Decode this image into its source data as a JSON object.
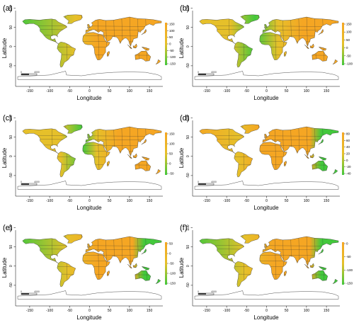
{
  "figure": {
    "panels": [
      {
        "label": "(a)",
        "scheme": "a",
        "colorbar": [
          "150",
          "100",
          "50",
          "0",
          "-50",
          "-100",
          "-150"
        ]
      },
      {
        "label": "(b)",
        "scheme": "b",
        "colorbar": [
          "150",
          "100",
          "50",
          "0",
          "-50",
          "-100"
        ]
      },
      {
        "label": "(c)",
        "scheme": "c",
        "colorbar": [
          "150",
          "100",
          "50",
          "0",
          "-50"
        ]
      },
      {
        "label": "(d)",
        "scheme": "d",
        "colorbar": [
          "80",
          "60",
          "40",
          "20",
          "0",
          "-20",
          "-40"
        ]
      },
      {
        "label": "(e)",
        "scheme": "e",
        "colorbar": [
          "50",
          "0",
          "-50",
          "-100",
          "-150"
        ]
      },
      {
        "label": "(f)",
        "scheme": "f",
        "colorbar": [
          "0",
          "-50",
          "-100",
          "-150"
        ]
      }
    ],
    "xlabel": "Longitude",
    "ylabel": "Latitude",
    "xticks": [
      "-150",
      "-100",
      "-50",
      "0",
      "50",
      "100",
      "150"
    ],
    "yticks": [
      "100",
      "50",
      "0",
      "-50"
    ],
    "scalebar": {
      "left": "0",
      "right": "4000"
    },
    "colors": {
      "high": "#f5a623",
      "mid": "#e6c02a",
      "low": "#43c83c",
      "border": "#333333"
    }
  }
}
